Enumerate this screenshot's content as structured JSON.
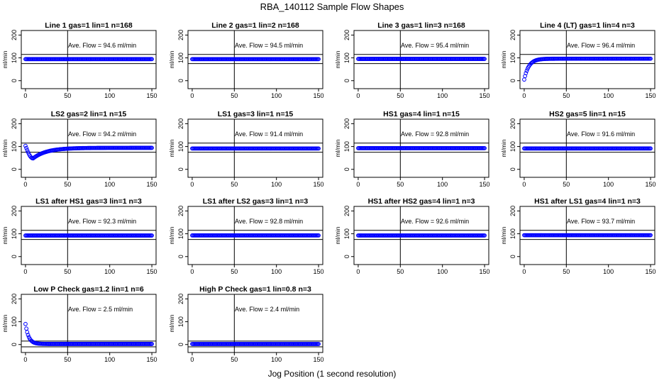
{
  "figure": {
    "title": "RBA_140112  Sample Flow Shapes",
    "xlabel": "Jog Position (1 second resolution)"
  },
  "chart_data": [
    {
      "type": "scatter",
      "title": "Line 1 gas=1 lin=1 n=168",
      "ylabel": "ml/min",
      "annotation": "Ave. Flow = 94.6  ml/min",
      "ave_flow": 94.6,
      "shape": "flat",
      "x_ticks": [
        0,
        50,
        100,
        150
      ],
      "y_ticks": [
        0,
        100,
        200
      ],
      "xlim": [
        -5,
        155
      ],
      "ylim": [
        -35,
        220
      ],
      "hlines": [
        75,
        115
      ],
      "vline": 50,
      "series": [
        {
          "x_range": [
            0,
            150
          ],
          "y_level": 94.6
        }
      ]
    },
    {
      "type": "scatter",
      "title": "Line 2 gas=1 lin=2 n=168",
      "ylabel": "ml/min",
      "annotation": "Ave. Flow = 94.5  ml/min",
      "ave_flow": 94.5,
      "shape": "flat",
      "x_ticks": [
        0,
        50,
        100,
        150
      ],
      "y_ticks": [
        0,
        100,
        200
      ],
      "xlim": [
        -5,
        155
      ],
      "ylim": [
        -35,
        220
      ],
      "hlines": [
        75,
        115
      ],
      "vline": 50,
      "series": [
        {
          "x_range": [
            0,
            150
          ],
          "y_level": 94.5
        }
      ]
    },
    {
      "type": "scatter",
      "title": "Line 3 gas=1 lin=3 n=168",
      "ylabel": "ml/min",
      "annotation": "Ave. Flow = 95.4  ml/min",
      "ave_flow": 95.4,
      "shape": "flat",
      "x_ticks": [
        0,
        50,
        100,
        150
      ],
      "y_ticks": [
        0,
        100,
        200
      ],
      "xlim": [
        -5,
        155
      ],
      "ylim": [
        -35,
        220
      ],
      "hlines": [
        75,
        115
      ],
      "vline": 50,
      "series": [
        {
          "x_range": [
            0,
            150
          ],
          "y_level": 95.4
        }
      ]
    },
    {
      "type": "scatter",
      "title": "Line 4 (LT) gas=1 lin=4 n=3",
      "ylabel": "ml/min",
      "annotation": "Ave. Flow = 96.4  ml/min",
      "ave_flow": 96.4,
      "shape": "rise",
      "x_ticks": [
        0,
        50,
        100,
        150
      ],
      "y_ticks": [
        0,
        100,
        200
      ],
      "xlim": [
        -5,
        155
      ],
      "ylim": [
        -35,
        220
      ],
      "hlines": [
        75,
        115
      ],
      "vline": 50,
      "series": [
        {
          "x_range": [
            0,
            150
          ],
          "y_level": 96.4
        }
      ]
    },
    {
      "type": "scatter",
      "title": "LS2 gas=2 lin=1 n=15",
      "ylabel": "ml/min",
      "annotation": "Ave. Flow = 94.2  ml/min",
      "ave_flow": 94.2,
      "shape": "dip",
      "x_ticks": [
        0,
        50,
        100,
        150
      ],
      "y_ticks": [
        0,
        100,
        200
      ],
      "xlim": [
        -5,
        155
      ],
      "ylim": [
        -35,
        220
      ],
      "hlines": [
        75,
        115
      ],
      "vline": 50,
      "series": [
        {
          "x_range": [
            0,
            150
          ],
          "y_level": 94.2
        }
      ]
    },
    {
      "type": "scatter",
      "title": "LS1 gas=3 lin=1 n=15",
      "ylabel": "ml/min",
      "annotation": "Ave. Flow = 91.4  ml/min",
      "ave_flow": 91.4,
      "shape": "flat",
      "x_ticks": [
        0,
        50,
        100,
        150
      ],
      "y_ticks": [
        0,
        100,
        200
      ],
      "xlim": [
        -5,
        155
      ],
      "ylim": [
        -35,
        220
      ],
      "hlines": [
        75,
        115
      ],
      "vline": 50,
      "series": [
        {
          "x_range": [
            0,
            150
          ],
          "y_level": 91.4
        }
      ]
    },
    {
      "type": "scatter",
      "title": "HS1 gas=4 lin=1 n=15",
      "ylabel": "ml/min",
      "annotation": "Ave. Flow = 92.8  ml/min",
      "ave_flow": 92.8,
      "shape": "flat",
      "x_ticks": [
        0,
        50,
        100,
        150
      ],
      "y_ticks": [
        0,
        100,
        200
      ],
      "xlim": [
        -5,
        155
      ],
      "ylim": [
        -35,
        220
      ],
      "hlines": [
        75,
        115
      ],
      "vline": 50,
      "series": [
        {
          "x_range": [
            0,
            150
          ],
          "y_level": 92.8
        }
      ]
    },
    {
      "type": "scatter",
      "title": "HS2 gas=5 lin=1 n=15",
      "ylabel": "ml/min",
      "annotation": "Ave. Flow = 91.6  ml/min",
      "ave_flow": 91.6,
      "shape": "flat",
      "x_ticks": [
        0,
        50,
        100,
        150
      ],
      "y_ticks": [
        0,
        100,
        200
      ],
      "xlim": [
        -5,
        155
      ],
      "ylim": [
        -35,
        220
      ],
      "hlines": [
        75,
        115
      ],
      "vline": 50,
      "series": [
        {
          "x_range": [
            0,
            150
          ],
          "y_level": 91.6
        }
      ]
    },
    {
      "type": "scatter",
      "title": "LS1 after HS1 gas=3 lin=1 n=3",
      "ylabel": "ml/min",
      "annotation": "Ave. Flow = 92.3  ml/min",
      "ave_flow": 92.3,
      "shape": "flat",
      "x_ticks": [
        0,
        50,
        100,
        150
      ],
      "y_ticks": [
        0,
        100,
        200
      ],
      "xlim": [
        -5,
        155
      ],
      "ylim": [
        -35,
        220
      ],
      "hlines": [
        75,
        115
      ],
      "vline": 50,
      "series": [
        {
          "x_range": [
            0,
            150
          ],
          "y_level": 92.3
        }
      ]
    },
    {
      "type": "scatter",
      "title": "LS1 after LS2 gas=3 lin=1 n=3",
      "ylabel": "ml/min",
      "annotation": "Ave. Flow = 92.8  ml/min",
      "ave_flow": 92.8,
      "shape": "flat",
      "x_ticks": [
        0,
        50,
        100,
        150
      ],
      "y_ticks": [
        0,
        100,
        200
      ],
      "xlim": [
        -5,
        155
      ],
      "ylim": [
        -35,
        220
      ],
      "hlines": [
        75,
        115
      ],
      "vline": 50,
      "series": [
        {
          "x_range": [
            0,
            150
          ],
          "y_level": 92.8
        }
      ]
    },
    {
      "type": "scatter",
      "title": "HS1 after HS2 gas=4 lin=1 n=3",
      "ylabel": "ml/min",
      "annotation": "Ave. Flow = 92.6  ml/min",
      "ave_flow": 92.6,
      "shape": "flat",
      "x_ticks": [
        0,
        50,
        100,
        150
      ],
      "y_ticks": [
        0,
        100,
        200
      ],
      "xlim": [
        -5,
        155
      ],
      "ylim": [
        -35,
        220
      ],
      "hlines": [
        75,
        115
      ],
      "vline": 50,
      "series": [
        {
          "x_range": [
            0,
            150
          ],
          "y_level": 92.6
        }
      ]
    },
    {
      "type": "scatter",
      "title": "HS1 after LS1 gas=4 lin=1 n=3",
      "ylabel": "ml/min",
      "annotation": "Ave. Flow = 93.7  ml/min",
      "ave_flow": 93.7,
      "shape": "flat",
      "x_ticks": [
        0,
        50,
        100,
        150
      ],
      "y_ticks": [
        0,
        100,
        200
      ],
      "xlim": [
        -5,
        155
      ],
      "ylim": [
        -35,
        220
      ],
      "hlines": [
        75,
        115
      ],
      "vline": 50,
      "series": [
        {
          "x_range": [
            0,
            150
          ],
          "y_level": 93.7
        }
      ]
    },
    {
      "type": "scatter",
      "title": "Low P Check gas=1.2 lin=1 n=6",
      "ylabel": "ml/min",
      "annotation": "Ave. Flow =  2.5  ml/min",
      "ave_flow": 2.5,
      "shape": "decay",
      "x_ticks": [
        0,
        50,
        100,
        150
      ],
      "y_ticks": [
        0,
        100,
        200
      ],
      "xlim": [
        -5,
        155
      ],
      "ylim": [
        -35,
        220
      ],
      "hlines": [
        -10,
        15
      ],
      "vline": 50,
      "series": [
        {
          "x_range": [
            0,
            150
          ],
          "y_level": 2.5
        }
      ]
    },
    {
      "type": "scatter",
      "title": "High P Check gas=1 lin=0.8 n=3",
      "ylabel": "ml/min",
      "annotation": "Ave. Flow =  2.4  ml/min",
      "ave_flow": 2.4,
      "shape": "flat",
      "x_ticks": [
        0,
        50,
        100,
        150
      ],
      "y_ticks": [
        0,
        100,
        200
      ],
      "xlim": [
        -5,
        155
      ],
      "ylim": [
        -35,
        220
      ],
      "hlines": [
        -10,
        15
      ],
      "vline": 50,
      "series": [
        {
          "x_range": [
            0,
            150
          ],
          "y_level": 2.4
        }
      ]
    }
  ],
  "colors": {
    "points": "#0000ff",
    "axes": "#000000",
    "background": "#ffffff"
  }
}
